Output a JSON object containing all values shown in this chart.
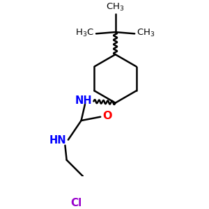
{
  "background_color": "#ffffff",
  "bond_color": "#000000",
  "N_color": "#0000ff",
  "O_color": "#ff0000",
  "Cl_color": "#9900cc",
  "figsize": [
    3.0,
    3.0
  ],
  "dpi": 100,
  "xlim": [
    0.0,
    5.0
  ],
  "ylim": [
    0.0,
    5.5
  ]
}
